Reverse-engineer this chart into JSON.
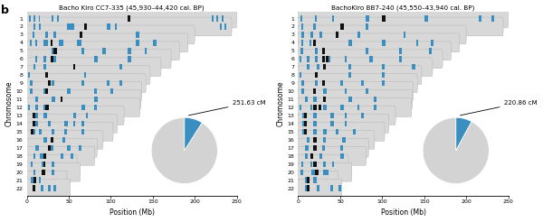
{
  "panel1_title": "Bacho Kiro CC7-335 (45,930–44,420 cal. ʙᴘ)",
  "panel2_title": "BachoKiro BB7-240 (45,550–43,940 cal. ʙᴘ)",
  "panel1_title_plain": "Bacho Kiro CC7-335 (45,930–44,420 cal. BP)",
  "panel2_title_plain": "BachoKiro BB7-240 (45,550–43,940 cal. BP)",
  "chromosomes": [
    1,
    2,
    3,
    4,
    5,
    6,
    7,
    8,
    9,
    10,
    11,
    12,
    13,
    14,
    15,
    16,
    17,
    18,
    19,
    20,
    21,
    22
  ],
  "chr_lengths_mb": [
    249,
    243,
    199,
    191,
    181,
    171,
    159,
    146,
    141,
    136,
    135,
    134,
    115,
    107,
    102,
    90,
    83,
    80,
    59,
    63,
    47,
    51
  ],
  "pie1_value": 251.63,
  "pie2_value": 220.86,
  "pie_total": 2800,
  "bar_height": 0.72,
  "bar_color": "#d8d8d8",
  "bar_edge_color": "#b0b0b0",
  "blue_color": "#3a8fc0",
  "black_color": "#111111",
  "bg_color": "#ffffff",
  "panel1_blue_segments": [
    [
      [
        3,
        5
      ],
      [
        8,
        10
      ],
      [
        14,
        16
      ],
      [
        30,
        32
      ],
      [
        36,
        38
      ],
      [
        220,
        222
      ],
      [
        225,
        228
      ],
      [
        232,
        234
      ]
    ],
    [
      [
        8,
        10
      ],
      [
        14,
        17
      ],
      [
        48,
        57
      ],
      [
        95,
        100
      ],
      [
        105,
        107
      ],
      [
        230,
        232
      ],
      [
        235,
        237
      ]
    ],
    [
      [
        7,
        9
      ],
      [
        22,
        25
      ],
      [
        32,
        35
      ],
      [
        130,
        134
      ]
    ],
    [
      [
        4,
        6
      ],
      [
        10,
        12
      ],
      [
        20,
        25
      ],
      [
        38,
        44
      ],
      [
        60,
        65
      ],
      [
        130,
        134
      ],
      [
        150,
        154
      ]
    ],
    [
      [
        30,
        33
      ],
      [
        65,
        68
      ],
      [
        90,
        94
      ],
      [
        120,
        124
      ],
      [
        140,
        143
      ]
    ],
    [
      [
        10,
        12
      ],
      [
        20,
        23
      ],
      [
        30,
        35
      ],
      [
        80,
        85
      ],
      [
        120,
        124
      ]
    ],
    [
      [
        8,
        10
      ],
      [
        20,
        23
      ],
      [
        110,
        113
      ]
    ],
    [
      [
        2,
        4
      ],
      [
        68,
        70
      ]
    ],
    [
      [
        4,
        7
      ],
      [
        30,
        33
      ],
      [
        65,
        68
      ],
      [
        95,
        98
      ],
      [
        110,
        113
      ]
    ],
    [
      [
        4,
        7
      ],
      [
        20,
        23
      ],
      [
        48,
        52
      ],
      [
        80,
        83
      ],
      [
        100,
        103
      ]
    ],
    [
      [
        10,
        13
      ],
      [
        30,
        34
      ],
      [
        80,
        84
      ]
    ],
    [
      [
        2,
        4
      ],
      [
        10,
        13
      ],
      [
        20,
        23
      ],
      [
        65,
        69
      ],
      [
        80,
        83
      ]
    ],
    [
      [
        10,
        13
      ],
      [
        20,
        24
      ],
      [
        55,
        59
      ],
      [
        70,
        73
      ]
    ],
    [
      [
        10,
        13
      ],
      [
        25,
        29
      ],
      [
        45,
        49
      ],
      [
        55,
        58
      ],
      [
        65,
        68
      ]
    ],
    [
      [
        7,
        10
      ],
      [
        15,
        18
      ],
      [
        30,
        33
      ],
      [
        45,
        48
      ],
      [
        65,
        68
      ]
    ],
    [
      [
        20,
        24
      ],
      [
        42,
        46
      ]
    ],
    [
      [
        10,
        14
      ],
      [
        28,
        32
      ],
      [
        48,
        52
      ],
      [
        62,
        65
      ]
    ],
    [
      [
        8,
        10
      ],
      [
        16,
        20
      ],
      [
        40,
        44
      ],
      [
        52,
        55
      ]
    ],
    [
      [
        5,
        7
      ],
      [
        18,
        20
      ],
      [
        30,
        33
      ]
    ],
    [
      [
        8,
        10
      ],
      [
        18,
        22
      ],
      [
        30,
        33
      ]
    ],
    [
      [
        5,
        8
      ],
      [
        14,
        17
      ]
    ],
    [
      [
        7,
        10
      ],
      [
        17,
        20
      ],
      [
        25,
        28
      ],
      [
        32,
        35
      ]
    ]
  ],
  "panel1_black_segments": [
    [
      [
        120,
        123
      ]
    ],
    [
      [
        68,
        72
      ]
    ],
    [
      [
        63,
        66
      ]
    ],
    [
      [
        28,
        31
      ]
    ],
    [
      [
        32,
        36
      ]
    ],
    [
      [
        28,
        32
      ]
    ],
    [
      [
        55,
        58
      ]
    ],
    [
      [
        22,
        25
      ]
    ],
    [
      [
        25,
        28
      ]
    ],
    [
      [
        22,
        25
      ]
    ],
    [
      [
        40,
        43
      ]
    ],
    [
      [
        22,
        26
      ]
    ],
    [
      [
        7,
        10
      ]
    ],
    [
      [
        7,
        10
      ]
    ],
    [
      [
        5,
        8
      ]
    ],
    [
      [
        28,
        32
      ]
    ],
    [
      [
        25,
        28
      ]
    ],
    [
      [
        20,
        23
      ]
    ],
    [
      [
        20,
        22
      ]
    ],
    [
      [
        18,
        22
      ]
    ],
    [
      [
        8,
        11
      ]
    ],
    [
      [
        7,
        10
      ]
    ]
  ],
  "panel2_blue_segments": [
    [
      [
        3,
        5
      ],
      [
        20,
        22
      ],
      [
        40,
        43
      ],
      [
        80,
        84
      ],
      [
        150,
        154
      ],
      [
        215,
        218
      ],
      [
        230,
        233
      ]
    ],
    [
      [
        4,
        6
      ],
      [
        18,
        21
      ],
      [
        50,
        54
      ],
      [
        80,
        83
      ]
    ],
    [
      [
        4,
        7
      ],
      [
        15,
        18
      ],
      [
        25,
        28
      ],
      [
        70,
        74
      ],
      [
        125,
        128
      ]
    ],
    [
      [
        4,
        6
      ],
      [
        13,
        16
      ],
      [
        60,
        64
      ],
      [
        100,
        104
      ],
      [
        140,
        143
      ],
      [
        158,
        161
      ]
    ],
    [
      [
        3,
        6
      ],
      [
        20,
        23
      ],
      [
        80,
        83
      ],
      [
        120,
        123
      ],
      [
        155,
        159
      ]
    ],
    [
      [
        2,
        4
      ],
      [
        10,
        13
      ],
      [
        20,
        23
      ],
      [
        35,
        38
      ],
      [
        55,
        58
      ],
      [
        85,
        89
      ],
      [
        120,
        123
      ]
    ],
    [
      [
        10,
        13
      ],
      [
        22,
        25
      ],
      [
        60,
        63
      ],
      [
        100,
        103
      ],
      [
        135,
        139
      ]
    ],
    [
      [
        2,
        4
      ],
      [
        60,
        63
      ],
      [
        100,
        103
      ]
    ],
    [
      [
        4,
        7
      ],
      [
        20,
        23
      ],
      [
        50,
        53
      ],
      [
        75,
        78
      ],
      [
        100,
        103
      ]
    ],
    [
      [
        4,
        7
      ],
      [
        30,
        34
      ],
      [
        55,
        58
      ],
      [
        80,
        83
      ]
    ],
    [
      [
        8,
        11
      ],
      [
        18,
        22
      ],
      [
        60,
        64
      ],
      [
        90,
        93
      ]
    ],
    [
      [
        2,
        4
      ],
      [
        14,
        17
      ],
      [
        30,
        34
      ],
      [
        50,
        54
      ],
      [
        70,
        73
      ],
      [
        90,
        93
      ]
    ],
    [
      [
        5,
        8
      ],
      [
        18,
        22
      ],
      [
        38,
        42
      ],
      [
        55,
        58
      ],
      [
        75,
        78
      ]
    ],
    [
      [
        5,
        8
      ],
      [
        18,
        22
      ],
      [
        38,
        42
      ],
      [
        55,
        58
      ]
    ],
    [
      [
        5,
        8
      ],
      [
        18,
        22
      ],
      [
        30,
        34
      ],
      [
        45,
        48
      ],
      [
        65,
        68
      ]
    ],
    [
      [
        10,
        13
      ],
      [
        30,
        33
      ],
      [
        52,
        56
      ]
    ],
    [
      [
        8,
        12
      ],
      [
        28,
        32
      ],
      [
        50,
        53
      ]
    ],
    [
      [
        8,
        11
      ],
      [
        25,
        28
      ],
      [
        50,
        54
      ]
    ],
    [
      [
        4,
        6
      ],
      [
        14,
        17
      ],
      [
        30,
        33
      ],
      [
        40,
        43
      ]
    ],
    [
      [
        3,
        6
      ],
      [
        16,
        20
      ],
      [
        30,
        36
      ]
    ],
    [
      [
        8,
        11
      ],
      [
        18,
        22
      ]
    ],
    [
      [
        8,
        11
      ],
      [
        22,
        25
      ],
      [
        38,
        41
      ],
      [
        48,
        51
      ]
    ]
  ],
  "panel2_black_segments": [
    [
      [
        100,
        104
      ]
    ],
    [
      [
        50,
        54
      ]
    ],
    [
      [
        45,
        48
      ]
    ],
    [
      [
        18,
        21
      ]
    ],
    [
      [
        28,
        32
      ]
    ],
    [
      [
        28,
        32
      ],
      [
        33,
        36
      ]
    ],
    [
      [
        30,
        33
      ]
    ],
    [
      [
        20,
        23
      ]
    ],
    [
      [
        28,
        32
      ]
    ],
    [
      [
        18,
        21
      ]
    ],
    [
      [
        30,
        33
      ]
    ],
    [
      [
        18,
        22
      ],
      [
        24,
        27
      ]
    ],
    [
      [
        7,
        10
      ]
    ],
    [
      [
        7,
        10
      ]
    ],
    [
      [
        7,
        10
      ]
    ],
    [
      [
        18,
        22
      ]
    ],
    [
      [
        18,
        22
      ]
    ],
    [
      [
        15,
        18
      ]
    ],
    [
      [
        18,
        22
      ]
    ],
    [
      [
        20,
        24
      ]
    ],
    [
      [
        10,
        13
      ]
    ],
    [
      [
        10,
        13
      ]
    ]
  ]
}
